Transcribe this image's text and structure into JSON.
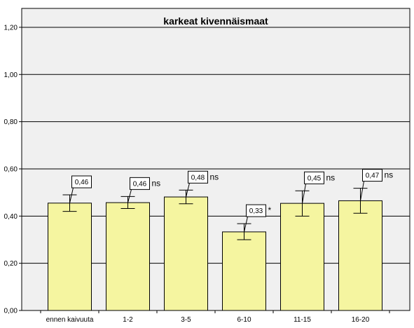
{
  "chart_data": {
    "type": "bar",
    "title": "karkeat kivennäismaat",
    "categories": [
      "ennen kaivuuta",
      "1-2",
      "3-5",
      "6-10",
      "11-15",
      "16-20"
    ],
    "values": [
      0.455,
      0.457,
      0.481,
      0.333,
      0.454,
      0.465
    ],
    "value_labels": [
      "0,46",
      "0,46",
      "0,48",
      "0,33",
      "0,45",
      "0,47"
    ],
    "significance": [
      "",
      "ns",
      "ns",
      "*",
      "ns",
      "ns"
    ],
    "error_low": [
      0.42,
      0.432,
      0.452,
      0.3,
      0.4,
      0.412
    ],
    "error_high": [
      0.49,
      0.483,
      0.51,
      0.368,
      0.507,
      0.518
    ],
    "yticks": [
      0,
      0.2,
      0.4,
      0.6,
      0.8,
      1.0,
      1.2
    ],
    "ytick_labels": [
      "0,00",
      "0,20",
      "0,40",
      "0,60",
      "0,80",
      "1,00",
      "1,20"
    ],
    "ylim": [
      0,
      1.28
    ],
    "xlabel": "",
    "ylabel": "",
    "grid": true,
    "colors": {
      "bar_fill": "#f5f5a0",
      "bar_stroke": "#000000",
      "plot_bg": "#f0f0f0",
      "grid": "#000000"
    }
  }
}
